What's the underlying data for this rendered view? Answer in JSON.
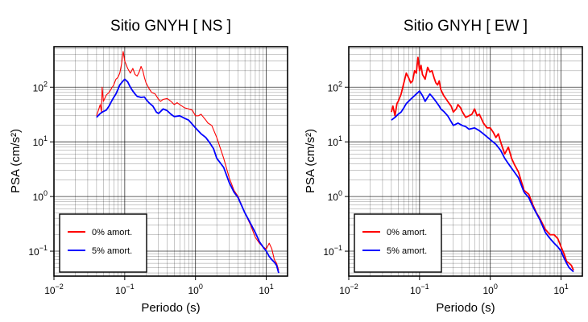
{
  "chart_data": [
    {
      "type": "line",
      "title": "Sitio GNYH [ NS ]",
      "xlabel": "Periodo (s)",
      "ylabel": "PSA (cm/s²)",
      "xscale": "log",
      "yscale": "log",
      "xlim": [
        0.01,
        20
      ],
      "ylim": [
        0.035,
        550
      ],
      "x_ticks": [
        {
          "value": 0.01,
          "base": "10",
          "exp": "−2"
        },
        {
          "value": 0.1,
          "base": "10",
          "exp": "−1"
        },
        {
          "value": 1,
          "base": "10",
          "exp": "0"
        },
        {
          "value": 10,
          "base": "10",
          "exp": "1"
        }
      ],
      "y_ticks": [
        {
          "value": 0.1,
          "base": "10",
          "exp": "−1"
        },
        {
          "value": 1,
          "base": "10",
          "exp": "0"
        },
        {
          "value": 10,
          "base": "10",
          "exp": "1"
        },
        {
          "value": 100,
          "base": "10",
          "exp": "2"
        }
      ],
      "grid": true,
      "legend_position": "bottom-left",
      "series": [
        {
          "name": "0% amort.",
          "color": "#ff0000",
          "points": [
            [
              0.04,
              30
            ],
            [
              0.043,
              40
            ],
            [
              0.045,
              48
            ],
            [
              0.047,
              35
            ],
            [
              0.048,
              100
            ],
            [
              0.05,
              55
            ],
            [
              0.055,
              72
            ],
            [
              0.06,
              80
            ],
            [
              0.065,
              95
            ],
            [
              0.07,
              110
            ],
            [
              0.075,
              140
            ],
            [
              0.08,
              150
            ],
            [
              0.085,
              180
            ],
            [
              0.09,
              260
            ],
            [
              0.095,
              450
            ],
            [
              0.1,
              300
            ],
            [
              0.11,
              220
            ],
            [
              0.12,
              180
            ],
            [
              0.13,
              220
            ],
            [
              0.14,
              170
            ],
            [
              0.15,
              160
            ],
            [
              0.16,
              190
            ],
            [
              0.17,
              240
            ],
            [
              0.18,
              200
            ],
            [
              0.19,
              150
            ],
            [
              0.2,
              120
            ],
            [
              0.22,
              95
            ],
            [
              0.24,
              80
            ],
            [
              0.27,
              75
            ],
            [
              0.3,
              60
            ],
            [
              0.32,
              55
            ],
            [
              0.35,
              60
            ],
            [
              0.4,
              62
            ],
            [
              0.45,
              55
            ],
            [
              0.5,
              48
            ],
            [
              0.55,
              52
            ],
            [
              0.6,
              48
            ],
            [
              0.7,
              42
            ],
            [
              0.8,
              40
            ],
            [
              0.9,
              38
            ],
            [
              1.0,
              30
            ],
            [
              1.1,
              30
            ],
            [
              1.2,
              32
            ],
            [
              1.3,
              28
            ],
            [
              1.4,
              25
            ],
            [
              1.5,
              22
            ],
            [
              1.7,
              20
            ],
            [
              2.0,
              12
            ],
            [
              2.5,
              5
            ],
            [
              3.0,
              2.2
            ],
            [
              3.5,
              1.3
            ],
            [
              4.0,
              1.0
            ],
            [
              5.0,
              0.5
            ],
            [
              6.0,
              0.3
            ],
            [
              7.0,
              0.18
            ],
            [
              8.0,
              0.14
            ],
            [
              9.0,
              0.12
            ],
            [
              10,
              0.11
            ],
            [
              11,
              0.14
            ],
            [
              12,
              0.11
            ],
            [
              13,
              0.07
            ],
            [
              14,
              0.06
            ],
            [
              15,
              0.045
            ]
          ]
        },
        {
          "name": "5% amort.",
          "color": "#0000ff",
          "points": [
            [
              0.04,
              28
            ],
            [
              0.045,
              33
            ],
            [
              0.05,
              36
            ],
            [
              0.055,
              38
            ],
            [
              0.06,
              45
            ],
            [
              0.065,
              55
            ],
            [
              0.07,
              65
            ],
            [
              0.075,
              75
            ],
            [
              0.08,
              90
            ],
            [
              0.085,
              110
            ],
            [
              0.09,
              120
            ],
            [
              0.095,
              130
            ],
            [
              0.1,
              140
            ],
            [
              0.11,
              125
            ],
            [
              0.12,
              100
            ],
            [
              0.13,
              85
            ],
            [
              0.14,
              75
            ],
            [
              0.15,
              68
            ],
            [
              0.17,
              65
            ],
            [
              0.19,
              66
            ],
            [
              0.2,
              60
            ],
            [
              0.22,
              52
            ],
            [
              0.25,
              45
            ],
            [
              0.28,
              35
            ],
            [
              0.3,
              33
            ],
            [
              0.35,
              40
            ],
            [
              0.4,
              37
            ],
            [
              0.45,
              32
            ],
            [
              0.5,
              29
            ],
            [
              0.6,
              30
            ],
            [
              0.7,
              27
            ],
            [
              0.8,
              25
            ],
            [
              1.0,
              18
            ],
            [
              1.2,
              14
            ],
            [
              1.4,
              12
            ],
            [
              1.6,
              9.5
            ],
            [
              1.8,
              7.5
            ],
            [
              2.0,
              5
            ],
            [
              2.5,
              3.4
            ],
            [
              3.0,
              1.8
            ],
            [
              3.5,
              1.2
            ],
            [
              4.0,
              0.95
            ],
            [
              5.0,
              0.5
            ],
            [
              6.0,
              0.32
            ],
            [
              7.0,
              0.22
            ],
            [
              8.0,
              0.15
            ],
            [
              9.0,
              0.12
            ],
            [
              10,
              0.1
            ],
            [
              11,
              0.08
            ],
            [
              12,
              0.07
            ],
            [
              13,
              0.063
            ],
            [
              14,
              0.055
            ],
            [
              15,
              0.04
            ]
          ]
        }
      ]
    },
    {
      "type": "line",
      "title": "Sitio GNYH [ EW ]",
      "xlabel": "Periodo (s)",
      "ylabel": "PSA (cm/s²)",
      "xscale": "log",
      "yscale": "log",
      "xlim": [
        0.01,
        20
      ],
      "ylim": [
        0.035,
        550
      ],
      "x_ticks": [
        {
          "value": 0.01,
          "base": "10",
          "exp": "−2"
        },
        {
          "value": 0.1,
          "base": "10",
          "exp": "−1"
        },
        {
          "value": 1,
          "base": "10",
          "exp": "0"
        },
        {
          "value": 10,
          "base": "10",
          "exp": "1"
        }
      ],
      "y_ticks": [
        {
          "value": 0.1,
          "base": "10",
          "exp": "−1"
        },
        {
          "value": 1,
          "base": "10",
          "exp": "0"
        },
        {
          "value": 10,
          "base": "10",
          "exp": "1"
        },
        {
          "value": 100,
          "base": "10",
          "exp": "2"
        }
      ],
      "grid": true,
      "legend_position": "bottom-left",
      "series": [
        {
          "name": "0% amort.",
          "color": "#ff0000",
          "points": [
            [
              0.04,
              35
            ],
            [
              0.042,
              45
            ],
            [
              0.045,
              30
            ],
            [
              0.048,
              50
            ],
            [
              0.05,
              55
            ],
            [
              0.055,
              75
            ],
            [
              0.06,
              120
            ],
            [
              0.065,
              180
            ],
            [
              0.07,
              150
            ],
            [
              0.075,
              120
            ],
            [
              0.08,
              130
            ],
            [
              0.085,
              200
            ],
            [
              0.09,
              180
            ],
            [
              0.095,
              350
            ],
            [
              0.1,
              200
            ],
            [
              0.105,
              250
            ],
            [
              0.11,
              170
            ],
            [
              0.12,
              140
            ],
            [
              0.13,
              230
            ],
            [
              0.14,
              190
            ],
            [
              0.15,
              200
            ],
            [
              0.16,
              150
            ],
            [
              0.17,
              120
            ],
            [
              0.18,
              110
            ],
            [
              0.19,
              130
            ],
            [
              0.2,
              90
            ],
            [
              0.22,
              70
            ],
            [
              0.25,
              55
            ],
            [
              0.28,
              45
            ],
            [
              0.3,
              35
            ],
            [
              0.33,
              40
            ],
            [
              0.35,
              48
            ],
            [
              0.38,
              42
            ],
            [
              0.4,
              36
            ],
            [
              0.45,
              28
            ],
            [
              0.5,
              30
            ],
            [
              0.55,
              32
            ],
            [
              0.6,
              40
            ],
            [
              0.65,
              30
            ],
            [
              0.7,
              32
            ],
            [
              0.8,
              22
            ],
            [
              0.9,
              18
            ],
            [
              1.0,
              18
            ],
            [
              1.1,
              15
            ],
            [
              1.2,
              12
            ],
            [
              1.3,
              14
            ],
            [
              1.4,
              10
            ],
            [
              1.6,
              6
            ],
            [
              1.8,
              8
            ],
            [
              2.0,
              5
            ],
            [
              2.2,
              3.8
            ],
            [
              2.5,
              2.8
            ],
            [
              3.0,
              1.3
            ],
            [
              3.5,
              1.1
            ],
            [
              4.0,
              0.7
            ],
            [
              4.5,
              0.5
            ],
            [
              5.0,
              0.4
            ],
            [
              6.0,
              0.25
            ],
            [
              7.0,
              0.2
            ],
            [
              8.0,
              0.2
            ],
            [
              9.0,
              0.17
            ],
            [
              10,
              0.12
            ],
            [
              11,
              0.09
            ],
            [
              12,
              0.065
            ],
            [
              13,
              0.06
            ],
            [
              14,
              0.055
            ],
            [
              15,
              0.045
            ]
          ]
        },
        {
          "name": "5% amort.",
          "color": "#0000ff",
          "points": [
            [
              0.04,
              25
            ],
            [
              0.045,
              28
            ],
            [
              0.05,
              32
            ],
            [
              0.055,
              35
            ],
            [
              0.06,
              42
            ],
            [
              0.065,
              50
            ],
            [
              0.07,
              55
            ],
            [
              0.08,
              65
            ],
            [
              0.09,
              75
            ],
            [
              0.1,
              85
            ],
            [
              0.11,
              70
            ],
            [
              0.12,
              55
            ],
            [
              0.13,
              65
            ],
            [
              0.14,
              75
            ],
            [
              0.15,
              68
            ],
            [
              0.17,
              55
            ],
            [
              0.19,
              45
            ],
            [
              0.2,
              40
            ],
            [
              0.22,
              36
            ],
            [
              0.25,
              30
            ],
            [
              0.3,
              20
            ],
            [
              0.35,
              22
            ],
            [
              0.4,
              20
            ],
            [
              0.45,
              19
            ],
            [
              0.5,
              17
            ],
            [
              0.6,
              18
            ],
            [
              0.7,
              16
            ],
            [
              0.8,
              14
            ],
            [
              1.0,
              11
            ],
            [
              1.2,
              9
            ],
            [
              1.4,
              7
            ],
            [
              1.6,
              5
            ],
            [
              1.8,
              4
            ],
            [
              2.0,
              3.3
            ],
            [
              2.5,
              2.2
            ],
            [
              3.0,
              1.2
            ],
            [
              3.5,
              0.95
            ],
            [
              4.0,
              0.65
            ],
            [
              5.0,
              0.38
            ],
            [
              6.0,
              0.22
            ],
            [
              7.0,
              0.17
            ],
            [
              8.0,
              0.14
            ],
            [
              9.0,
              0.12
            ],
            [
              10,
              0.1
            ],
            [
              11,
              0.075
            ],
            [
              12,
              0.06
            ],
            [
              13,
              0.05
            ],
            [
              15,
              0.042
            ]
          ]
        }
      ]
    }
  ]
}
